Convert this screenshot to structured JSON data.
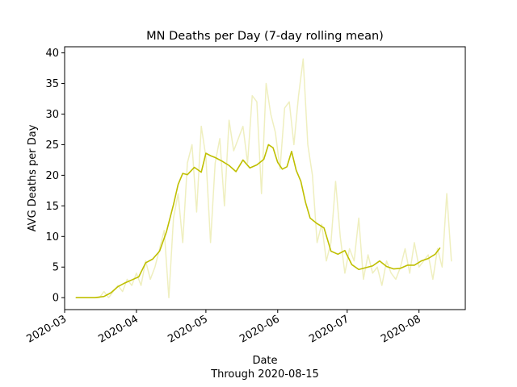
{
  "chart_data": {
    "type": "line",
    "title": "MN Deaths per Day (7-day rolling mean)",
    "xlabel": "Date",
    "xlabel_sub": "Through 2020-08-15",
    "ylabel": "AVG Deaths per Day",
    "x_range": [
      "2020-03-01",
      "2020-08-21"
    ],
    "ylim": [
      -1.95,
      41.0
    ],
    "x_ticks": [
      "2020-03-01",
      "2020-04-01",
      "2020-05-01",
      "2020-06-01",
      "2020-07-01",
      "2020-08-01"
    ],
    "x_tick_labels": [
      "2020-03",
      "2020-04",
      "2020-05",
      "2020-06",
      "2020-07",
      "2020-08"
    ],
    "y_ticks": [
      0,
      5,
      10,
      15,
      20,
      25,
      30,
      35,
      40
    ],
    "y_tick_labels": [
      "0",
      "5",
      "10",
      "15",
      "20",
      "25",
      "30",
      "35",
      "40"
    ],
    "grid": false,
    "legend": "none",
    "colors": {
      "rolling_mean": "#bfbf00",
      "daily": "#bfbf00",
      "daily_opacity": 0.25
    },
    "series": [
      {
        "role": "daily",
        "x": [
          "2020-03-06",
          "2020-03-08",
          "2020-03-10",
          "2020-03-12",
          "2020-03-14",
          "2020-03-16",
          "2020-03-18",
          "2020-03-20",
          "2020-03-22",
          "2020-03-24",
          "2020-03-26",
          "2020-03-28",
          "2020-03-30",
          "2020-04-01",
          "2020-04-03",
          "2020-04-05",
          "2020-04-07",
          "2020-04-09",
          "2020-04-11",
          "2020-04-13",
          "2020-04-15",
          "2020-04-17",
          "2020-04-19",
          "2020-04-21",
          "2020-04-23",
          "2020-04-25",
          "2020-04-27",
          "2020-04-29",
          "2020-05-01",
          "2020-05-03",
          "2020-05-05",
          "2020-05-07",
          "2020-05-09",
          "2020-05-11",
          "2020-05-13",
          "2020-05-15",
          "2020-05-17",
          "2020-05-19",
          "2020-05-21",
          "2020-05-23",
          "2020-05-25",
          "2020-05-27",
          "2020-05-29",
          "2020-05-31",
          "2020-06-02",
          "2020-06-04",
          "2020-06-06",
          "2020-06-08",
          "2020-06-10",
          "2020-06-12",
          "2020-06-14",
          "2020-06-16",
          "2020-06-18",
          "2020-06-20",
          "2020-06-22",
          "2020-06-24",
          "2020-06-26",
          "2020-06-28",
          "2020-06-30",
          "2020-07-02",
          "2020-07-04",
          "2020-07-06",
          "2020-07-08",
          "2020-07-10",
          "2020-07-12",
          "2020-07-14",
          "2020-07-16",
          "2020-07-18",
          "2020-07-20",
          "2020-07-22",
          "2020-07-24",
          "2020-07-26",
          "2020-07-28",
          "2020-07-30",
          "2020-08-01",
          "2020-08-03",
          "2020-08-05",
          "2020-08-07",
          "2020-08-09",
          "2020-08-11",
          "2020-08-13",
          "2020-08-15"
        ],
        "values": [
          0,
          0,
          0,
          0,
          0,
          0,
          1,
          0,
          1,
          2,
          1,
          3,
          2,
          4,
          2,
          6,
          3,
          5,
          8,
          11,
          0,
          13,
          17,
          9,
          22,
          25,
          14,
          28,
          23,
          9,
          22,
          26,
          15,
          29,
          24,
          26,
          28,
          22,
          33,
          32,
          17,
          35,
          30,
          27,
          21,
          31,
          32,
          25,
          33,
          39,
          25,
          20,
          9,
          12,
          6,
          9,
          19,
          10,
          4,
          8,
          6,
          13,
          3,
          7,
          4,
          5,
          2,
          6,
          4,
          3,
          5,
          8,
          4,
          9,
          5,
          6,
          7,
          3,
          8,
          5,
          17,
          6
        ]
      },
      {
        "role": "rolling_mean",
        "x": [
          "2020-03-06",
          "2020-03-10",
          "2020-03-14",
          "2020-03-18",
          "2020-03-21",
          "2020-03-24",
          "2020-03-27",
          "2020-03-30",
          "2020-04-02",
          "2020-04-05",
          "2020-04-08",
          "2020-04-11",
          "2020-04-14",
          "2020-04-17",
          "2020-04-19",
          "2020-04-21",
          "2020-04-23",
          "2020-04-26",
          "2020-04-29",
          "2020-05-01",
          "2020-05-03",
          "2020-05-05",
          "2020-05-08",
          "2020-05-11",
          "2020-05-14",
          "2020-05-17",
          "2020-05-20",
          "2020-05-23",
          "2020-05-26",
          "2020-05-28",
          "2020-05-30",
          "2020-06-01",
          "2020-06-03",
          "2020-06-05",
          "2020-06-07",
          "2020-06-09",
          "2020-06-11",
          "2020-06-13",
          "2020-06-15",
          "2020-06-18",
          "2020-06-21",
          "2020-06-24",
          "2020-06-27",
          "2020-06-30",
          "2020-07-03",
          "2020-07-06",
          "2020-07-09",
          "2020-07-12",
          "2020-07-15",
          "2020-07-18",
          "2020-07-21",
          "2020-07-24",
          "2020-07-27",
          "2020-07-30",
          "2020-08-02",
          "2020-08-05",
          "2020-08-08",
          "2020-08-10"
        ],
        "values": [
          0,
          0,
          0,
          0.2,
          0.8,
          1.8,
          2.4,
          2.9,
          3.4,
          5.7,
          6.3,
          7.6,
          10.8,
          15.2,
          18.5,
          20.3,
          20.1,
          21.3,
          20.5,
          23.6,
          23.2,
          22.9,
          22.3,
          21.6,
          20.6,
          22.5,
          21.2,
          21.7,
          22.6,
          25.0,
          24.5,
          22.1,
          21.0,
          21.4,
          23.9,
          20.8,
          19.0,
          15.6,
          13.0,
          12.1,
          11.4,
          7.6,
          7.1,
          7.7,
          5.4,
          4.6,
          4.9,
          5.2,
          6.0,
          5.1,
          4.7,
          4.8,
          5.3,
          5.3,
          6.0,
          6.4,
          7.1,
          8.1
        ]
      }
    ]
  }
}
